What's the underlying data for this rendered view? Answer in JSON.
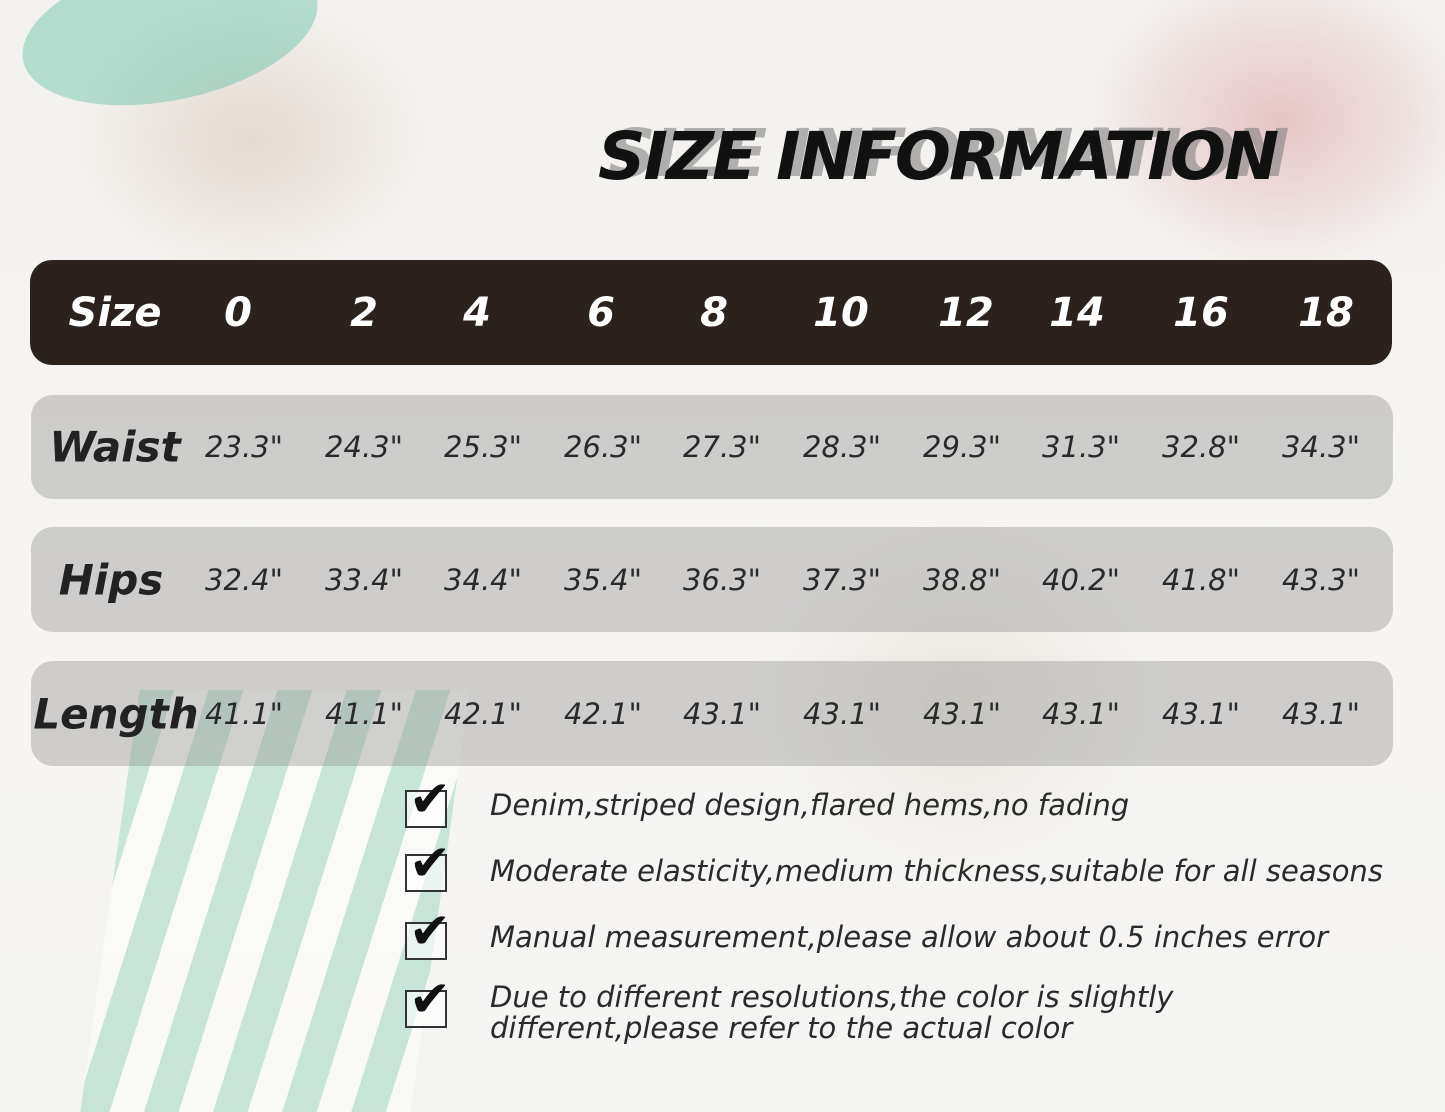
{
  "title": "SIZE INFORMATION",
  "table": {
    "header": {
      "label": "Size",
      "values": [
        "0",
        "2",
        "4",
        "6",
        "8",
        "10",
        "12",
        "14",
        "16",
        "18"
      ]
    },
    "rows": [
      {
        "label": "Waist",
        "values": [
          "23.3\"",
          "24.3\"",
          "25.3\"",
          "26.3\"",
          "27.3\"",
          "28.3\"",
          "29.3\"",
          "31.3\"",
          "32.8\"",
          "34.3\""
        ]
      },
      {
        "label": "Hips",
        "values": [
          "32.4\"",
          "33.4\"",
          "34.4\"",
          "35.4\"",
          "36.3\"",
          "37.3\"",
          "38.8\"",
          "40.2\"",
          "41.8\"",
          "43.3\""
        ]
      },
      {
        "label": "Length",
        "values": [
          "41.1\"",
          "41.1\"",
          "42.1\"",
          "42.1\"",
          "43.1\"",
          "43.1\"",
          "43.1\"",
          "43.1\"",
          "43.1\"",
          "43.1\""
        ]
      }
    ]
  },
  "features": [
    "Denim,striped design,flared hems,no fading",
    "Moderate elasticity,medium thickness,suitable for all seasons",
    "Manual measurement,please allow about 0.5 inches error",
    "Due to different resolutions,the color is slightly different,please refer to the actual color"
  ],
  "colors": {
    "header_bg": "#2b211d",
    "row_bg": "#a8a8a8",
    "text": "#222222"
  }
}
